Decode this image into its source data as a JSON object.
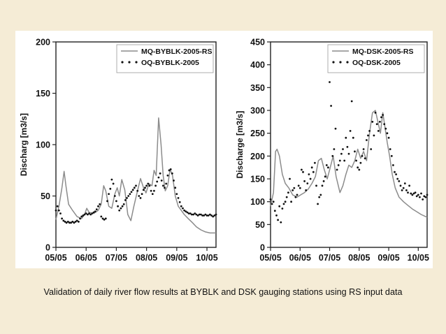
{
  "caption": "Validation of daily river flow results at BYBLK and DSK gauging stations using RS input data",
  "colors": {
    "background": "#f5ecd6",
    "figure": "#ffffff",
    "modeled_line": "#8c8c8c",
    "observed_points": "#111111",
    "axis": "#222222"
  },
  "chart_data": [
    {
      "type": "line",
      "title": "",
      "xlabel": "",
      "ylabel": "Discharg  [m3/s]",
      "ylim": [
        0,
        200
      ],
      "yticks": [
        0,
        50,
        100,
        150,
        200
      ],
      "xlim": [
        0,
        5.3
      ],
      "xticks": [
        {
          "x": 0,
          "label": "05/05"
        },
        {
          "x": 1,
          "label": "06/05"
        },
        {
          "x": 2,
          "label": "07/05"
        },
        {
          "x": 3,
          "label": "08/05"
        },
        {
          "x": 4,
          "label": "09/05"
        },
        {
          "x": 5,
          "label": "10/05"
        }
      ],
      "legend": "top-right",
      "grid": false,
      "series": [
        {
          "name": "MQ-BYBLK-2005-RS",
          "style": "line",
          "x": [
            0,
            0.1,
            0.2,
            0.27,
            0.33,
            0.42,
            0.55,
            0.7,
            0.85,
            0.95,
            1.02,
            1.1,
            1.25,
            1.4,
            1.5,
            1.58,
            1.65,
            1.75,
            1.85,
            1.95,
            2.03,
            2.1,
            2.18,
            2.28,
            2.38,
            2.48,
            2.58,
            2.7,
            2.8,
            2.9,
            2.98,
            3.08,
            3.18,
            3.25,
            3.32,
            3.4,
            3.48,
            3.55,
            3.62,
            3.7,
            3.78,
            3.86,
            3.95,
            4.05,
            4.15,
            4.25,
            4.38,
            4.52,
            4.65,
            4.8,
            4.95,
            5.1,
            5.3
          ],
          "y": [
            27,
            40,
            58,
            74,
            60,
            42,
            36,
            30,
            28,
            32,
            38,
            34,
            33,
            36,
            42,
            60,
            55,
            40,
            38,
            52,
            58,
            50,
            66,
            56,
            32,
            26,
            40,
            55,
            67,
            58,
            53,
            62,
            60,
            75,
            70,
            126,
            100,
            70,
            55,
            60,
            76,
            70,
            50,
            40,
            36,
            32,
            28,
            24,
            20,
            17,
            15,
            14,
            14
          ]
        },
        {
          "name": "OQ-BYBLK-2005",
          "style": "points",
          "x": [
            0,
            0.05,
            0.1,
            0.15,
            0.2,
            0.25,
            0.3,
            0.35,
            0.4,
            0.45,
            0.5,
            0.55,
            0.6,
            0.65,
            0.7,
            0.75,
            0.8,
            0.85,
            0.9,
            0.95,
            1,
            1.05,
            1.1,
            1.15,
            1.2,
            1.25,
            1.3,
            1.35,
            1.4,
            1.45,
            1.5,
            1.55,
            1.6,
            1.65,
            1.7,
            1.75,
            1.8,
            1.85,
            1.9,
            1.95,
            2,
            2.05,
            2.1,
            2.15,
            2.2,
            2.25,
            2.3,
            2.35,
            2.4,
            2.45,
            2.5,
            2.55,
            2.6,
            2.65,
            2.7,
            2.75,
            2.8,
            2.85,
            2.9,
            2.95,
            3,
            3.05,
            3.1,
            3.15,
            3.2,
            3.25,
            3.3,
            3.35,
            3.4,
            3.45,
            3.5,
            3.55,
            3.6,
            3.65,
            3.7,
            3.75,
            3.8,
            3.85,
            3.9,
            3.95,
            4,
            4.05,
            4.1,
            4.15,
            4.2,
            4.25,
            4.3,
            4.35,
            4.4,
            4.45,
            4.5,
            4.55,
            4.6,
            4.65,
            4.7,
            4.75,
            4.8,
            4.85,
            4.9,
            4.95,
            5,
            5.05,
            5.1,
            5.15,
            5.2,
            5.25,
            5.3
          ],
          "y": [
            36,
            40,
            36,
            33,
            28,
            26,
            25,
            24,
            25,
            24,
            24,
            25,
            24,
            25,
            26,
            25,
            28,
            30,
            31,
            32,
            33,
            32,
            33,
            32,
            33,
            34,
            35,
            37,
            40,
            42,
            30,
            28,
            27,
            28,
            45,
            52,
            57,
            66,
            62,
            50,
            45,
            40,
            36,
            38,
            40,
            42,
            46,
            48,
            50,
            52,
            54,
            56,
            58,
            60,
            55,
            50,
            48,
            52,
            56,
            58,
            60,
            62,
            60,
            55,
            52,
            55,
            60,
            64,
            68,
            72,
            65,
            60,
            58,
            62,
            70,
            75,
            76,
            72,
            65,
            58,
            52,
            48,
            44,
            40,
            38,
            36,
            35,
            34,
            33,
            33,
            32,
            32,
            33,
            32,
            31,
            32,
            32,
            31,
            31,
            32,
            31,
            31,
            32,
            31,
            30,
            31,
            32
          ]
        }
      ]
    },
    {
      "type": "line",
      "title": "",
      "xlabel": "",
      "ylabel": "Discharge  [m3/s]",
      "ylim": [
        0,
        450
      ],
      "yticks": [
        0,
        50,
        100,
        150,
        200,
        250,
        300,
        350,
        400,
        450
      ],
      "xlim": [
        0,
        5.3
      ],
      "xticks": [
        {
          "x": 0,
          "label": "05/05"
        },
        {
          "x": 1,
          "label": "06/05"
        },
        {
          "x": 2,
          "label": "07/05"
        },
        {
          "x": 3,
          "label": "08/05"
        },
        {
          "x": 4,
          "label": "09/05"
        },
        {
          "x": 5,
          "label": "10/05"
        }
      ],
      "legend": "top-right",
      "grid": false,
      "series": [
        {
          "name": "MQ-DSK-2005-RS",
          "style": "line",
          "x": [
            0,
            0.1,
            0.17,
            0.22,
            0.3,
            0.4,
            0.5,
            0.62,
            0.75,
            0.9,
            1.02,
            1.15,
            1.28,
            1.4,
            1.52,
            1.62,
            1.72,
            1.82,
            1.92,
            2.02,
            2.12,
            2.22,
            2.35,
            2.45,
            2.55,
            2.65,
            2.75,
            2.85,
            2.95,
            3.05,
            3.15,
            3.25,
            3.35,
            3.45,
            3.55,
            3.65,
            3.72,
            3.8,
            3.88,
            3.95,
            4.03,
            4.12,
            4.22,
            4.35,
            4.5,
            4.65,
            4.8,
            4.95,
            5.1,
            5.3
          ],
          "y": [
            90,
            120,
            210,
            215,
            200,
            160,
            140,
            130,
            115,
            110,
            115,
            120,
            128,
            140,
            155,
            190,
            195,
            170,
            150,
            175,
            200,
            155,
            120,
            135,
            160,
            180,
            175,
            190,
            215,
            195,
            210,
            190,
            250,
            295,
            300,
            270,
            250,
            295,
            260,
            230,
            200,
            160,
            130,
            110,
            100,
            92,
            84,
            78,
            72,
            66
          ]
        },
        {
          "name": "OQ-DSK-2005",
          "style": "points",
          "x": [
            0,
            0.05,
            0.1,
            0.15,
            0.2,
            0.25,
            0.3,
            0.35,
            0.4,
            0.45,
            0.5,
            0.55,
            0.6,
            0.65,
            0.7,
            0.75,
            0.8,
            0.85,
            0.9,
            0.95,
            1,
            1.05,
            1.1,
            1.15,
            1.2,
            1.25,
            1.3,
            1.35,
            1.4,
            1.45,
            1.5,
            1.55,
            1.6,
            1.65,
            1.7,
            1.75,
            1.8,
            1.85,
            1.9,
            1.95,
            2,
            2.05,
            2.1,
            2.15,
            2.2,
            2.25,
            2.3,
            2.35,
            2.4,
            2.45,
            2.5,
            2.55,
            2.6,
            2.65,
            2.7,
            2.75,
            2.8,
            2.85,
            2.9,
            2.95,
            3,
            3.05,
            3.1,
            3.15,
            3.2,
            3.25,
            3.3,
            3.35,
            3.4,
            3.45,
            3.5,
            3.55,
            3.6,
            3.65,
            3.7,
            3.75,
            3.8,
            3.85,
            3.9,
            3.95,
            4,
            4.05,
            4.1,
            4.15,
            4.2,
            4.25,
            4.3,
            4.35,
            4.4,
            4.45,
            4.5,
            4.55,
            4.6,
            4.65,
            4.7,
            4.75,
            4.8,
            4.85,
            4.9,
            4.95,
            5,
            5.05,
            5.1,
            5.15,
            5.2,
            5.25,
            5.3
          ],
          "y": [
            105,
            95,
            100,
            80,
            70,
            60,
            90,
            55,
            85,
            95,
            100,
            110,
            120,
            150,
            100,
            125,
            130,
            110,
            115,
            135,
            130,
            170,
            165,
            145,
            125,
            140,
            160,
            150,
            175,
            165,
            185,
            135,
            95,
            110,
            115,
            135,
            145,
            155,
            180,
            175,
            362,
            310,
            200,
            215,
            260,
            170,
            180,
            190,
            205,
            215,
            190,
            240,
            220,
            205,
            255,
            320,
            240,
            210,
            190,
            175,
            170,
            185,
            200,
            215,
            195,
            235,
            245,
            255,
            215,
            275,
            245,
            295,
            270,
            255,
            275,
            285,
            290,
            270,
            260,
            250,
            240,
            215,
            200,
            180,
            165,
            160,
            150,
            145,
            135,
            125,
            130,
            140,
            125,
            120,
            135,
            118,
            115,
            118,
            120,
            112,
            115,
            110,
            118,
            105,
            112,
            110,
            115
          ]
        }
      ]
    }
  ]
}
